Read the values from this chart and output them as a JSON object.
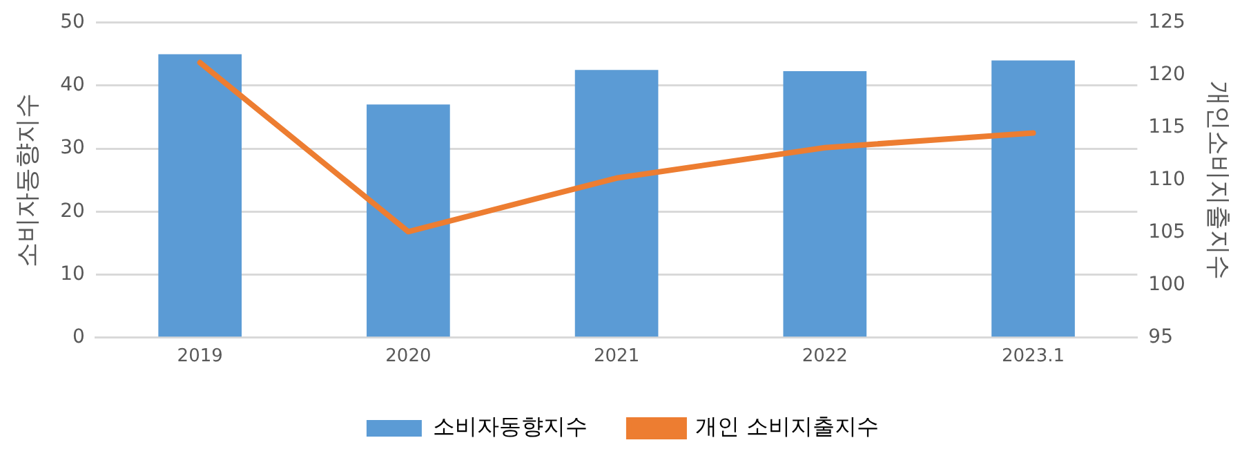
{
  "chart_data": {
    "type": "bar",
    "categories": [
      "2019",
      "2020",
      "2021",
      "2022",
      "2023.1"
    ],
    "ylabel": "소비자동향지수",
    "y2label": "개인소비지출지수",
    "series": [
      {
        "name": "소비자동향지수",
        "color": "#5b9bd5",
        "values": [
          45,
          37,
          42.5,
          42.3,
          44
        ]
      },
      {
        "name": "개인 소비지출지수",
        "type": "line",
        "axis": "y2",
        "color": "#ed7d31",
        "values": [
          121.2,
          105.1,
          110.2,
          113.1,
          114.5
        ]
      }
    ],
    "ylim": [
      0,
      50
    ],
    "yticks": [
      0,
      10,
      20,
      30,
      40,
      50
    ],
    "y2lim": [
      95,
      125
    ],
    "y2ticks": [
      95,
      100,
      105,
      110,
      115,
      120,
      125
    ],
    "grid": "y",
    "legend": "bottom",
    "marker": "none"
  }
}
